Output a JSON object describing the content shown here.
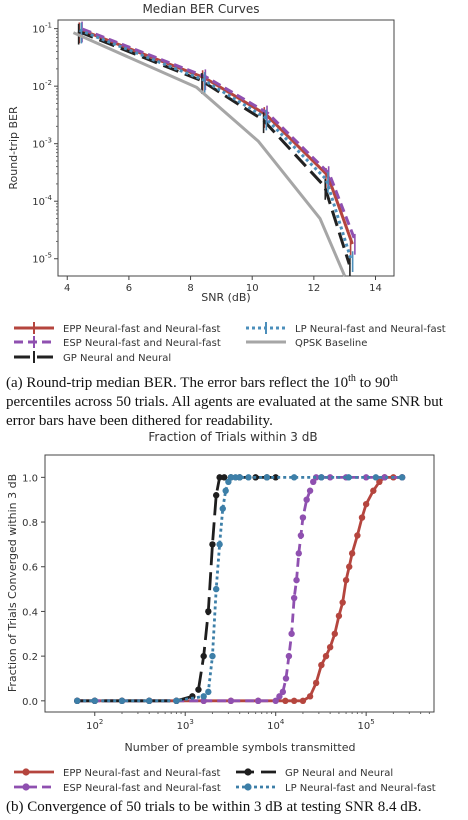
{
  "chart_data": [
    {
      "type": "line",
      "title": "Median BER Curves",
      "xlabel": "SNR (dB)",
      "ylabel": "Round-trip BER",
      "xlim": [
        3.7,
        14.6
      ],
      "ylim_log10": [
        -5.3,
        -0.85
      ],
      "yscale": "log",
      "xticks": [
        "4",
        "6",
        "8",
        "10",
        "12",
        "14"
      ],
      "yticks": [
        "10",
        "10",
        "10",
        "10",
        "10"
      ],
      "ytick_exps": [
        "-1",
        "-2",
        "-3",
        "-4",
        "-5"
      ],
      "legend": "below",
      "series": [
        {
          "name": "EPP Neural-fast and Neural-fast",
          "color": "#b5453e",
          "dash": "",
          "x": [
            4.45,
            8.45,
            10.45,
            12.45,
            13.25
          ],
          "y": [
            0.095,
            0.014,
            0.0032,
            0.00028,
            1.8e-05
          ]
        },
        {
          "name": "ESP Neural-fast and Neural-fast",
          "color": "#8f50b0",
          "dash": "9,5",
          "x": [
            4.5,
            8.5,
            10.5,
            12.5,
            13.35
          ],
          "y": [
            0.098,
            0.0145,
            0.0034,
            0.0003,
            2e-05
          ]
        },
        {
          "name": "GP Neural and Neural",
          "color": "#222222",
          "dash": "16,7",
          "x": [
            4.35,
            8.35,
            10.35,
            12.35,
            13.15
          ],
          "y": [
            0.09,
            0.0125,
            0.0026,
            0.00018,
            8e-06
          ]
        },
        {
          "name": "LP Neural-fast and Neural-fast",
          "color": "#4c8fbb",
          "dash": "3,3",
          "x": [
            4.4,
            8.4,
            10.4,
            12.4,
            13.2
          ],
          "y": [
            0.094,
            0.013,
            0.0029,
            0.00024,
            1e-05
          ]
        },
        {
          "name": "QPSK Baseline",
          "color": "#a6a6a6",
          "dash": "",
          "x": [
            4.2,
            8.2,
            10.2,
            12.2,
            13.0
          ],
          "y": [
            0.085,
            0.0095,
            0.0011,
            5e-05,
            5e-06
          ]
        }
      ]
    },
    {
      "type": "line",
      "title": "Fraction of Trials within 3 dB",
      "xlabel": "Number of preamble symbols transmitted",
      "ylabel": "Fraction of Trials Converged within 3 dB",
      "xscale": "log",
      "xlim_log10": [
        1.45,
        5.75
      ],
      "ylim": [
        -0.05,
        1.1
      ],
      "xticks": [
        "10",
        "10",
        "10",
        "10"
      ],
      "xtick_exps": [
        "2",
        "3",
        "4",
        "5"
      ],
      "yticks": [
        "0.0",
        "0.2",
        "0.4",
        "0.6",
        "0.8",
        "1.0"
      ],
      "legend": "below",
      "series": [
        {
          "name": "EPP Neural-fast and Neural-fast",
          "color": "#b5453e",
          "dash": "",
          "marker": true,
          "x": [
            64,
            100,
            200,
            400,
            800,
            1600,
            3200,
            6400,
            12800,
            16000,
            20000,
            24000,
            28000,
            32000,
            36000,
            40000,
            45000,
            50000,
            55000,
            60000,
            65000,
            70000,
            80000,
            90000,
            100000,
            120000,
            140000,
            160000,
            200000,
            250000
          ],
          "y": [
            0,
            0,
            0,
            0,
            0,
            0,
            0,
            0,
            0,
            0,
            0,
            0.02,
            0.08,
            0.16,
            0.2,
            0.24,
            0.3,
            0.38,
            0.44,
            0.54,
            0.6,
            0.66,
            0.74,
            0.82,
            0.88,
            0.94,
            0.98,
            1.0,
            1.0,
            1.0
          ]
        },
        {
          "name": "ESP Neural-fast and Neural-fast",
          "color": "#8f50b0",
          "dash": "9,5",
          "marker": true,
          "x": [
            64,
            100,
            200,
            400,
            800,
            1600,
            3200,
            6400,
            10000,
            11000,
            12000,
            13000,
            14000,
            15000,
            16000,
            17000,
            18000,
            19000,
            20000,
            22000,
            24000,
            26000,
            28000,
            32000,
            40000,
            60000,
            100000,
            160000,
            250000
          ],
          "y": [
            0,
            0,
            0,
            0,
            0,
            0,
            0,
            0,
            0,
            0.02,
            0.04,
            0.1,
            0.2,
            0.3,
            0.46,
            0.54,
            0.66,
            0.74,
            0.82,
            0.9,
            0.94,
            0.98,
            1.0,
            1.0,
            1.0,
            1.0,
            1.0,
            1.0,
            1.0
          ]
        },
        {
          "name": "GP Neural and Neural",
          "color": "#1e1e1e",
          "dash": "18,7",
          "marker": true,
          "x": [
            64,
            100,
            200,
            400,
            800,
            1200,
            1400,
            1600,
            1800,
            2000,
            2200,
            2400,
            2700,
            3200,
            4000,
            6000,
            8000,
            10000
          ],
          "y": [
            0,
            0,
            0,
            0,
            0,
            0.02,
            0.05,
            0.2,
            0.4,
            0.7,
            0.92,
            1.0,
            1.0,
            1.0,
            1.0,
            1.0,
            1.0,
            1.0
          ]
        },
        {
          "name": "LP Neural-fast and Neural-fast",
          "color": "#3d7fa8",
          "dash": "3,3",
          "marker": true,
          "x": [
            64,
            100,
            200,
            400,
            800,
            1600,
            1800,
            2000,
            2200,
            2400,
            2600,
            2800,
            3000,
            3200,
            3600,
            4000,
            5000,
            8000,
            16000,
            32000,
            64000,
            128000,
            250000
          ],
          "y": [
            0,
            0,
            0,
            0,
            0,
            0.02,
            0.04,
            0.2,
            0.5,
            0.7,
            0.86,
            0.94,
            0.98,
            1.0,
            1.0,
            1.0,
            1.0,
            1.0,
            1.0,
            1.0,
            1.0,
            1.0,
            1.0
          ]
        }
      ]
    }
  ],
  "caption_a": {
    "part1": "(a) Round-trip median BER. The error bars reflect the 10",
    "sup1": "th",
    "part2": " to 90",
    "sup2": "th",
    "part3": " percentiles across 50 trials. All agents are evaluated at the same SNR but error bars have been dithered for readability."
  },
  "caption_b": "(b) Convergence of 50 trials to be within 3 dB at testing SNR 8.4 dB."
}
